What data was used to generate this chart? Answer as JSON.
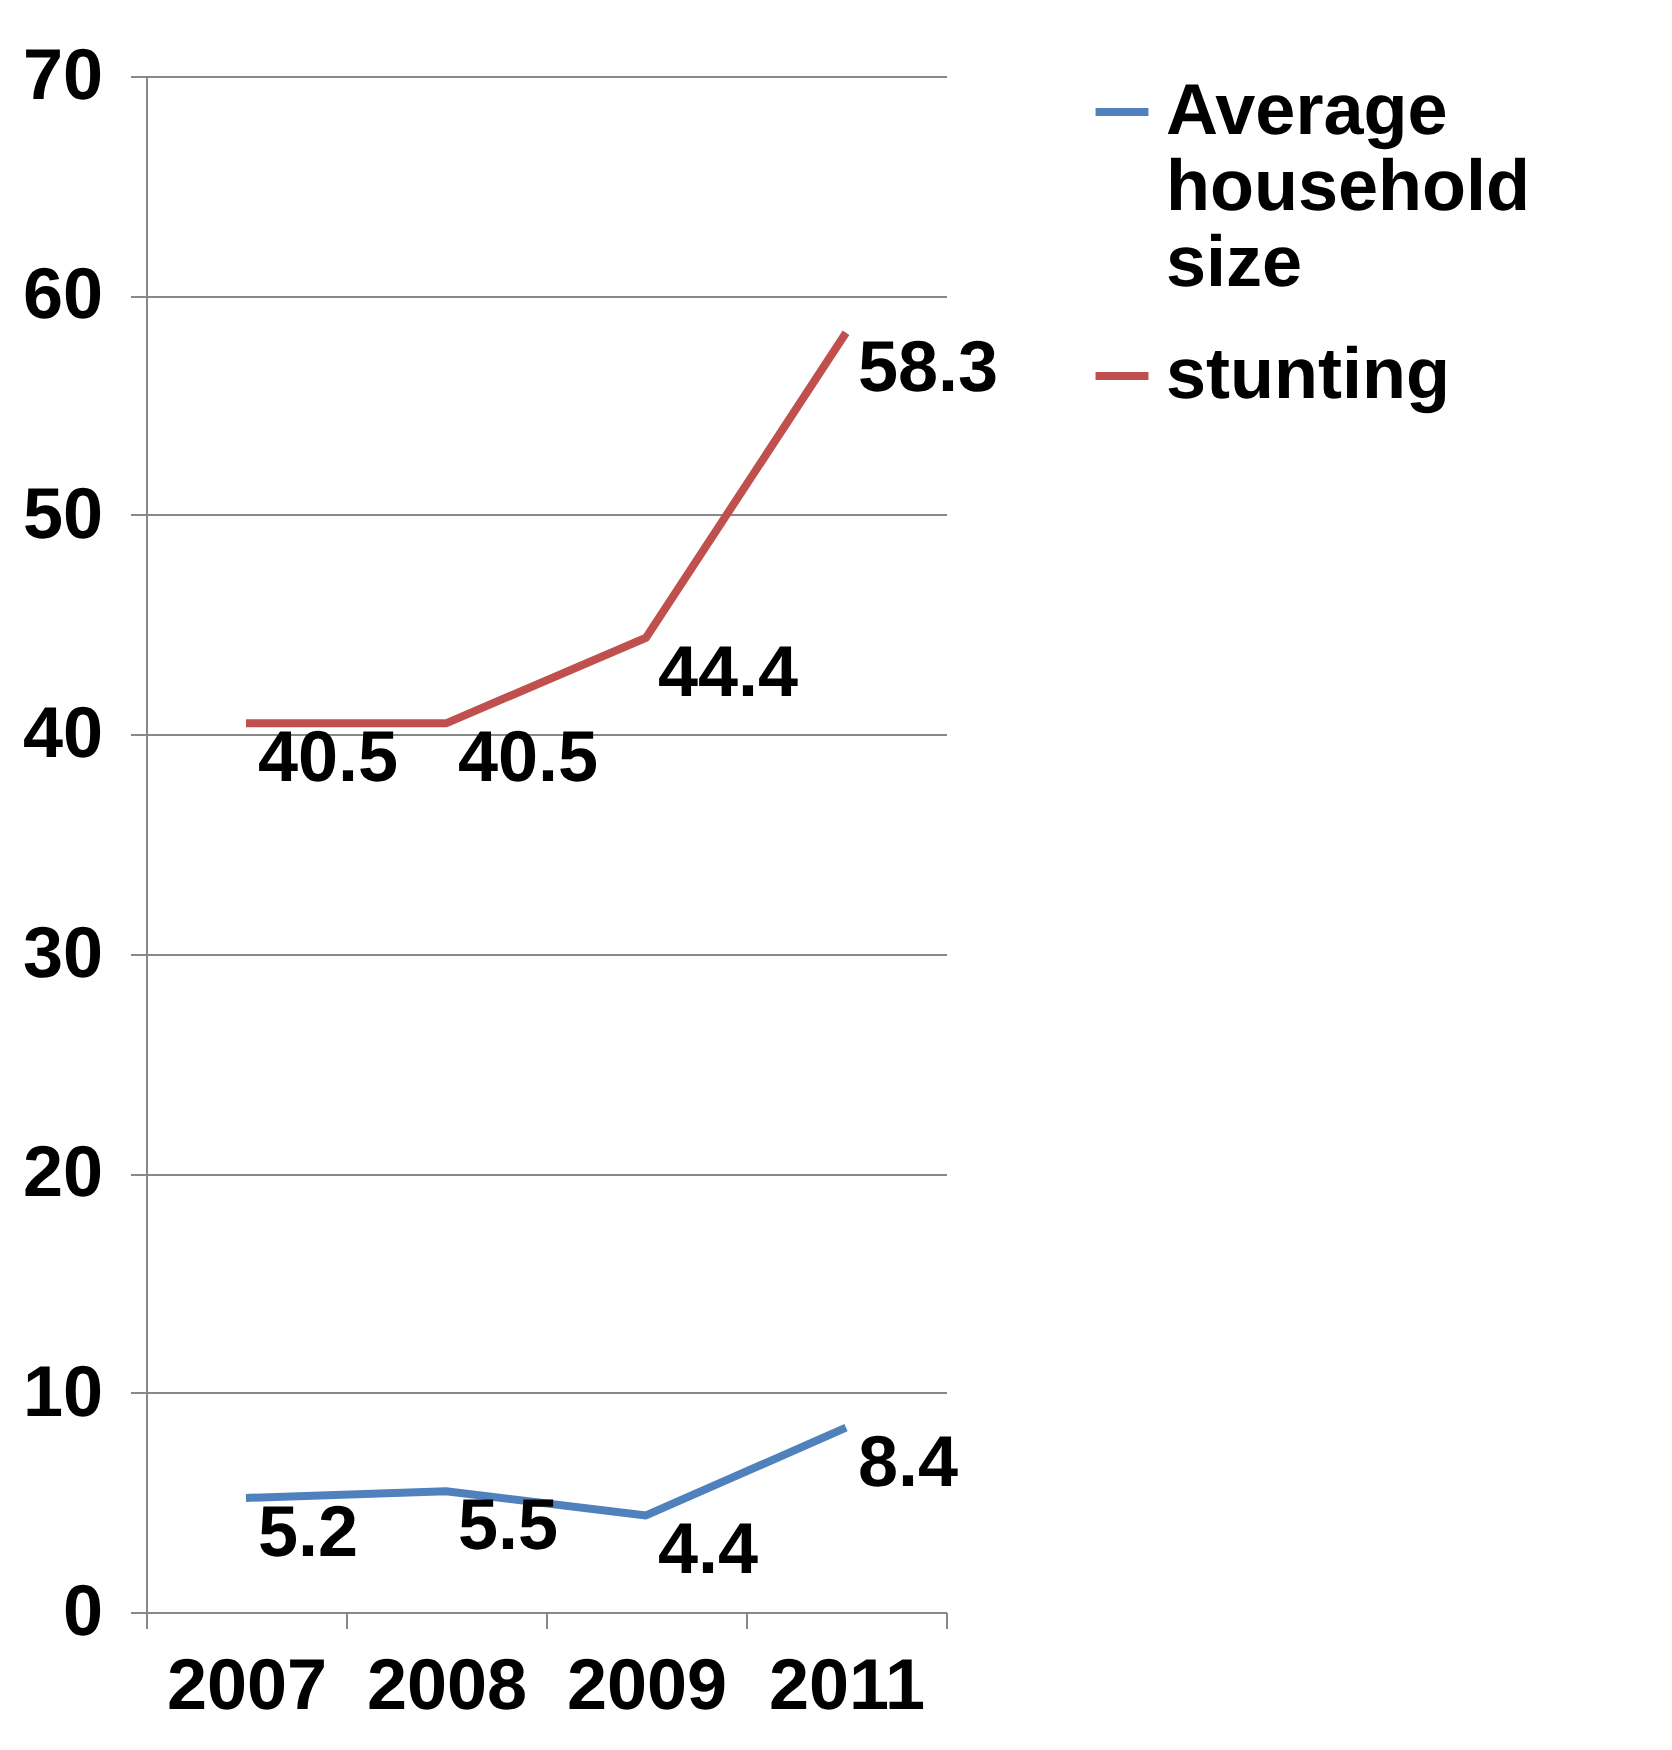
{
  "chart_data": {
    "type": "line",
    "categories": [
      "2007",
      "2008",
      "2009",
      "2011"
    ],
    "series": [
      {
        "name": "Average household size",
        "color": "#4f81bd",
        "values": [
          5.2,
          5.5,
          4.4,
          8.4
        ]
      },
      {
        "name": "stunting",
        "color": "#c0504d",
        "values": [
          40.5,
          40.5,
          44.4,
          58.3
        ]
      }
    ],
    "ylim": [
      0,
      70
    ],
    "yticks": [
      0,
      10,
      20,
      30,
      40,
      50,
      60,
      70
    ],
    "grid": "y",
    "legend": "right",
    "data_labels": true,
    "marker": "none",
    "line_style": "solid"
  }
}
